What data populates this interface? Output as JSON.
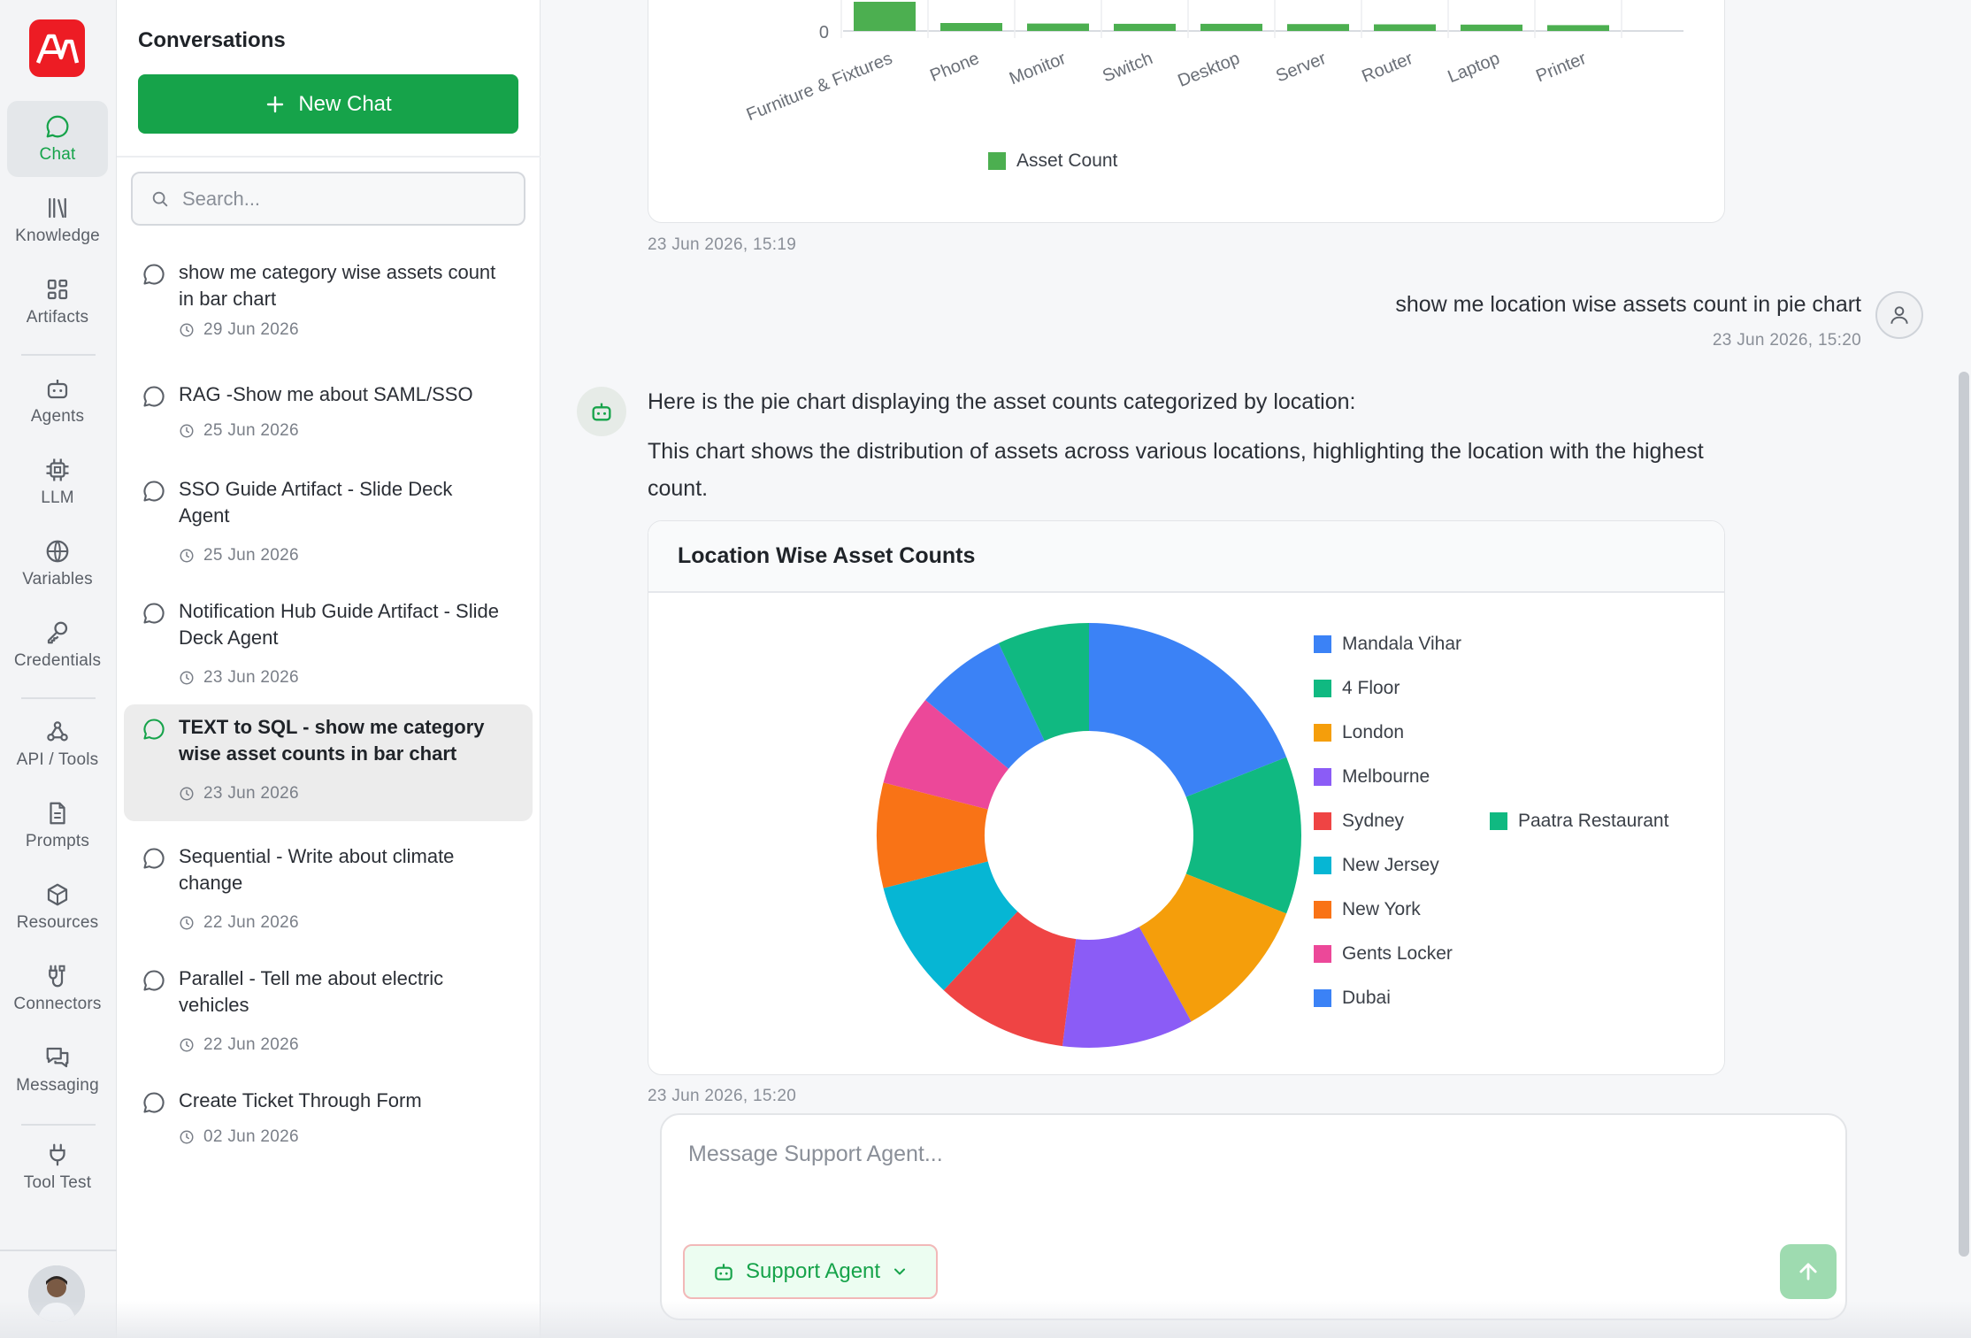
{
  "rail": {
    "logo_text": "AW",
    "items": [
      {
        "label": "Chat",
        "icon": "chat-icon",
        "active": true
      },
      {
        "label": "Knowledge",
        "icon": "library-icon"
      },
      {
        "label": "Artifacts",
        "icon": "grid-icon"
      },
      {
        "label": "Agents",
        "icon": "bot-icon"
      },
      {
        "label": "LLM",
        "icon": "cpu-icon"
      },
      {
        "label": "Variables",
        "icon": "globe-icon"
      },
      {
        "label": "Credentials",
        "icon": "key-icon"
      },
      {
        "label": "API / Tools",
        "icon": "webhook-icon"
      },
      {
        "label": "Prompts",
        "icon": "document-icon"
      },
      {
        "label": "Resources",
        "icon": "box-icon"
      },
      {
        "label": "Connectors",
        "icon": "cable-icon"
      },
      {
        "label": "Messaging",
        "icon": "messages-icon"
      },
      {
        "label": "Tool Test",
        "icon": "plug-icon"
      }
    ]
  },
  "conversations": {
    "title": "Conversations",
    "new_chat_label": "New Chat",
    "search_placeholder": "Search...",
    "items": [
      {
        "title": "show me category wise assets count in bar chart",
        "date": "29 Jun 2026"
      },
      {
        "title": "RAG -Show me about SAML/SSO",
        "date": "25 Jun 2026"
      },
      {
        "title": "SSO Guide Artifact - Slide Deck Agent",
        "date": "25 Jun 2026"
      },
      {
        "title": "Notification Hub Guide Artifact - Slide Deck Agent",
        "date": "23 Jun 2026"
      },
      {
        "title": "TEXT to SQL - show me category wise asset counts in bar chart",
        "date": "23 Jun 2026",
        "active": true
      },
      {
        "title": "Sequential - Write about climate change",
        "date": "22 Jun 2026"
      },
      {
        "title": "Parallel - Tell me about electric vehicles",
        "date": "22 Jun 2026"
      },
      {
        "title": "Create Ticket Through Form",
        "date": "02 Jun 2026"
      }
    ]
  },
  "chat": {
    "bar_timestamp": "23 Jun 2026, 15:19",
    "user_message": "show me location wise assets count in pie chart",
    "user_timestamp": "23 Jun 2026, 15:20",
    "bot_line1": "Here is the pie chart displaying the asset counts categorized by location:",
    "bot_line2": "This chart shows the distribution of assets across various locations, highlighting the location with the highest count.",
    "pie_timestamp": "23 Jun 2026, 15:20",
    "composer_placeholder": "Message Support Agent...",
    "agent_label": "Support Agent"
  },
  "colors": {
    "accent": "#16a34a",
    "bar": "#4caf50"
  },
  "chart_data": [
    {
      "type": "bar",
      "note": "partially visible (scrolled); only the bottom of the bar chart is shown",
      "categories": [
        "Furniture & Fixtures",
        "Phone",
        "Monitor",
        "Switch",
        "Desktop",
        "Server",
        "Router",
        "Laptop",
        "Printer"
      ],
      "values": [
        110,
        30,
        28,
        27,
        27,
        26,
        25,
        24,
        22
      ],
      "y_ticks_visible": [
        "0"
      ],
      "legend": [
        "Asset Count"
      ],
      "color": "#4caf50"
    },
    {
      "type": "pie",
      "title": "Location Wise Asset Counts",
      "donut": true,
      "labels": [
        "Mandala Vihar",
        "4 Floor",
        "London",
        "Melbourne",
        "Sydney",
        "New Jersey",
        "New York",
        "Gents Locker",
        "Dubai",
        "Paatra Restaurant"
      ],
      "values": [
        19,
        12,
        11,
        10,
        10,
        9,
        8,
        7,
        7,
        7
      ],
      "colors": [
        "#3b82f6",
        "#10b981",
        "#f59e0b",
        "#8b5cf6",
        "#ef4444",
        "#06b6d4",
        "#f97316",
        "#ec4899",
        "#3b82f6",
        "#10b981"
      ]
    }
  ]
}
